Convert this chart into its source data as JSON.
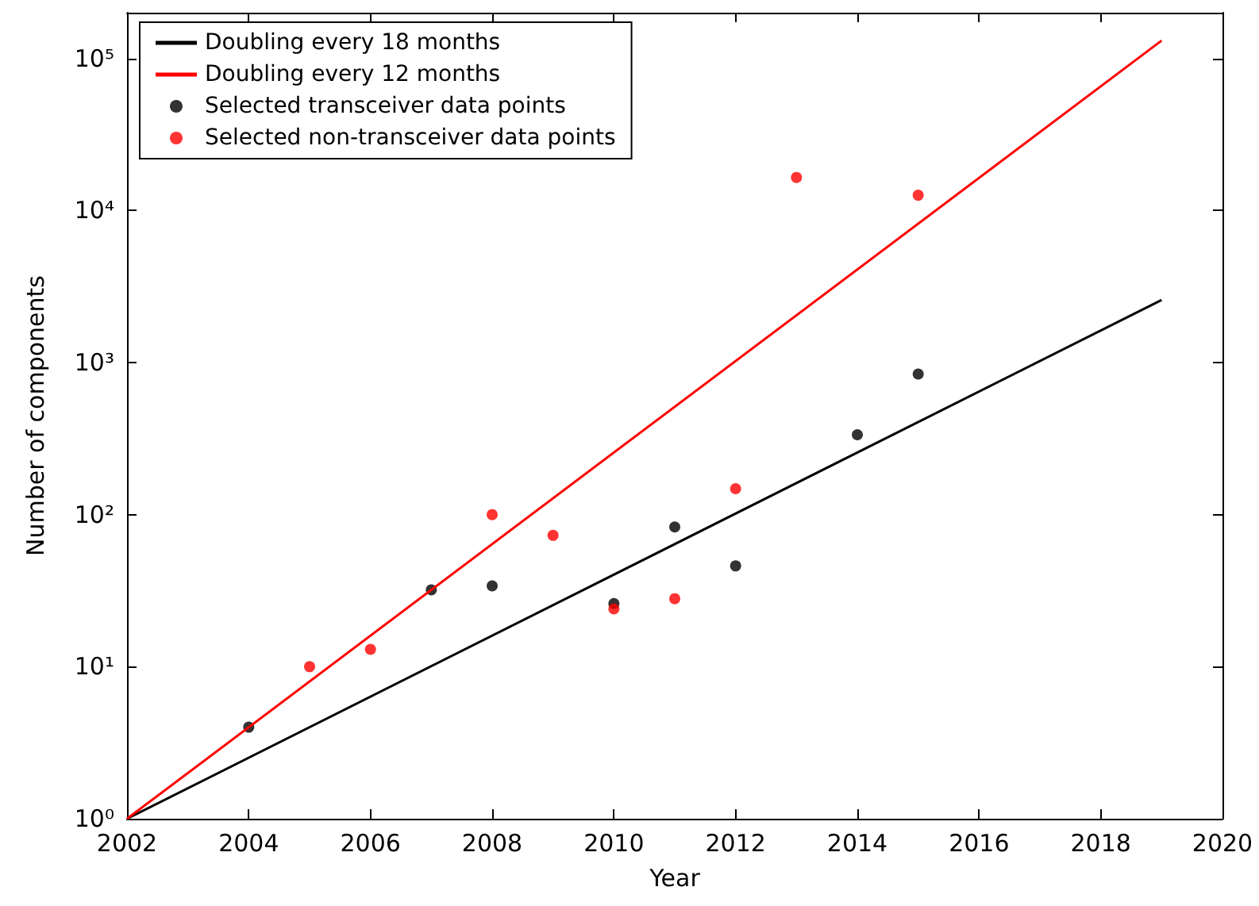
{
  "chart_data": {
    "type": "scatter",
    "xlabel": "Year",
    "ylabel": "Number of components",
    "xlim": [
      2002,
      2020
    ],
    "xticks": [
      2002,
      2004,
      2006,
      2008,
      2010,
      2012,
      2014,
      2016,
      2018,
      2020
    ],
    "ylim": [
      1,
      200000
    ],
    "log": "y",
    "yticks": [
      {
        "value": 1,
        "label": "10⁰"
      },
      {
        "value": 10,
        "label": "10¹"
      },
      {
        "value": 100,
        "label": "10²"
      },
      {
        "value": 1000,
        "label": "10³"
      },
      {
        "value": 10000,
        "label": "10⁴"
      },
      {
        "value": 100000,
        "label": "10⁵"
      }
    ],
    "grid": false,
    "legend": "top left",
    "marker": "circle",
    "series": [
      {
        "name": "Doubling every 18 months",
        "type": "line",
        "marker": "none",
        "color": "#000000",
        "x": [
          2002,
          2019
        ],
        "values": [
          1,
          2580
        ]
      },
      {
        "name": "Doubling every 12 months",
        "type": "line",
        "marker": "none",
        "color": "#ff0000",
        "x": [
          2002,
          2019
        ],
        "values": [
          1,
          131072
        ]
      },
      {
        "name": "Selected transceiver data points",
        "color": "#000000",
        "x": [
          2004,
          2007,
          2008,
          2010,
          2011,
          2012,
          2014,
          2015
        ],
        "values": [
          4,
          32,
          34,
          26,
          83,
          46,
          335,
          840
        ]
      },
      {
        "name": "Selected non-transceiver data points",
        "color": "#ff0000",
        "x": [
          2005,
          2006,
          2008,
          2009,
          2010,
          2011,
          2012,
          2013,
          2015
        ],
        "values": [
          10,
          13,
          100,
          73,
          24,
          28,
          148,
          16500,
          12600
        ]
      }
    ]
  }
}
